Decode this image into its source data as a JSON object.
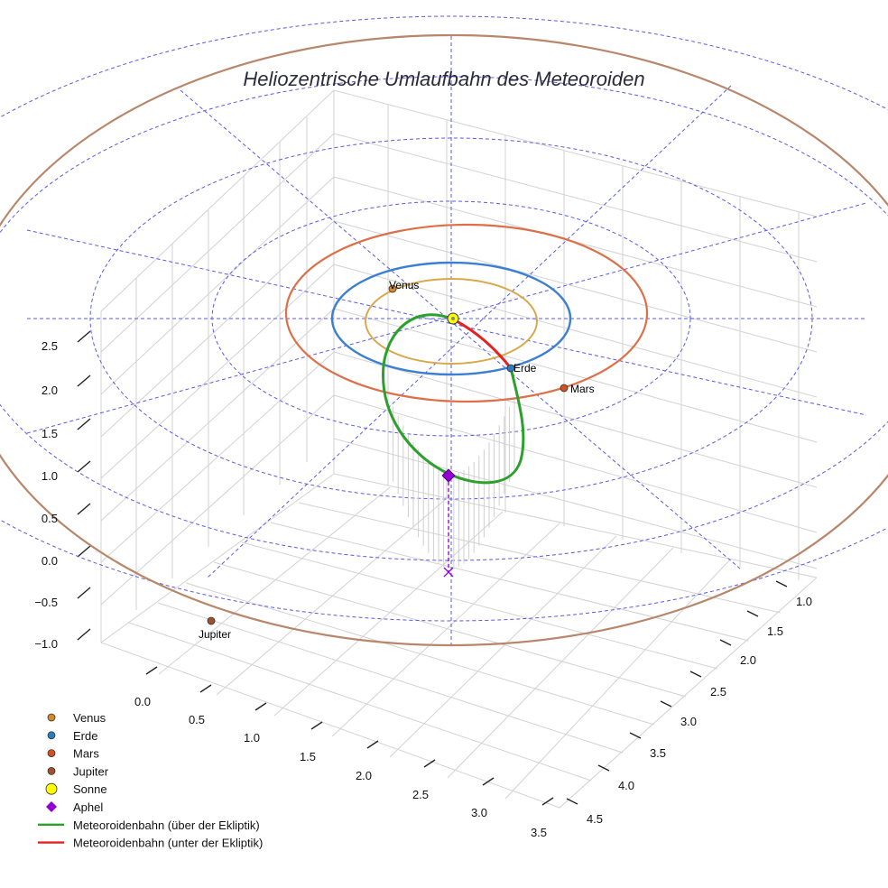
{
  "chart_data": {
    "type": "scatter",
    "title": "Heliozentrische Umlaufbahn des Meteoroiden",
    "z_ticks": [
      "2.5",
      "2.0",
      "1.5",
      "1.0",
      "0.5",
      "0.0",
      "−0.5",
      "−1.0"
    ],
    "x_ticks": [
      "0.0",
      "0.5",
      "1.0",
      "1.5",
      "2.0",
      "2.5",
      "3.0",
      "3.5"
    ],
    "y_ticks": [
      "1.0",
      "1.5",
      "2.0",
      "2.5",
      "3.0",
      "3.5",
      "4.0",
      "4.5"
    ],
    "planets": [
      {
        "name": "Venus",
        "label": "Venus",
        "orbit_radius_au": 0.72,
        "color": "#d58a2a",
        "orbit_color": "#d9a84a"
      },
      {
        "name": "Erde",
        "label": "Erde",
        "orbit_radius_au": 1.0,
        "color": "#2b7bc2",
        "orbit_color": "#3b7fd0"
      },
      {
        "name": "Mars",
        "label": "Mars",
        "orbit_radius_au": 1.52,
        "color": "#d4501e",
        "orbit_color": "#dd7048"
      },
      {
        "name": "Jupiter",
        "label": "Jupiter",
        "orbit_radius_au": 5.2,
        "color": "#a0522d",
        "orbit_color": "#b8866a"
      }
    ],
    "sun": {
      "name": "Sonne",
      "color": "#ffff00"
    },
    "aphel": {
      "name": "Aphel",
      "color": "#9400d3"
    },
    "meteoroid_orbit": [
      {
        "name": "Meteoroidenbahn (über der Ekliptik)",
        "color": "#2ca02c"
      },
      {
        "name": "Meteoroidenbahn (unter der Ekliptik)",
        "color": "#e52222"
      }
    ],
    "legend": [
      {
        "label": "Venus",
        "marker": "circle",
        "color": "#d58a2a"
      },
      {
        "label": "Erde",
        "marker": "circle",
        "color": "#2b7bc2"
      },
      {
        "label": "Mars",
        "marker": "circle",
        "color": "#d4501e"
      },
      {
        "label": "Jupiter",
        "marker": "circle",
        "color": "#a0522d"
      },
      {
        "label": "Sonne",
        "marker": "circle",
        "color": "#ffff00"
      },
      {
        "label": "Aphel",
        "marker": "diamond",
        "color": "#9400d3"
      },
      {
        "label": "Meteoroidenbahn (über der Ekliptik)",
        "marker": "line",
        "color": "#2ca02c"
      },
      {
        "label": "Meteoroidenbahn (unter der Ekliptik)",
        "marker": "line",
        "color": "#e52222"
      }
    ],
    "ecliptic_grid_color": "#5a5ae6",
    "legend_position": "bottom-left"
  }
}
